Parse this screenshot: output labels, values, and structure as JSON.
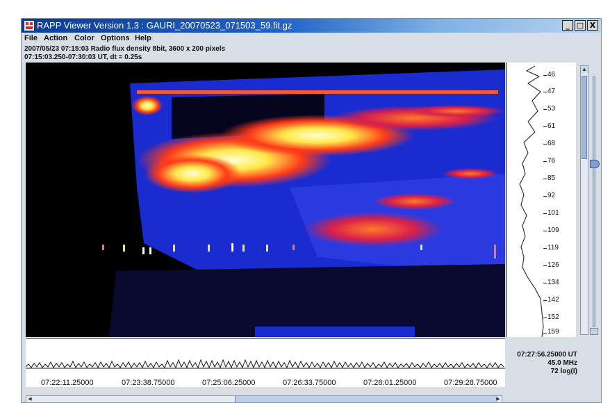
{
  "window": {
    "title": "RAPP Viewer Version 1.3 : GAURI_20070523_071503_59.fit.gz",
    "buttons": {
      "minimize": "_",
      "maximize": "□",
      "close": "X"
    }
  },
  "menu": {
    "items": [
      "File",
      "Action",
      "Color",
      "Options",
      "Help"
    ]
  },
  "info": {
    "line1": "2007/05/23  07:15:03 Radio flux density 8bit,  3600 x 200 pixels",
    "line2": "07:15:03.250-07:30:03 UT,  dt = 0.25s"
  },
  "frequency_axis": {
    "ticks": [
      "46",
      "47",
      "53",
      "61",
      "68",
      "76",
      "85",
      "92",
      "101",
      "109",
      "119",
      "126",
      "134",
      "142",
      "152",
      "159"
    ]
  },
  "readout": {
    "time": "07:27:56.25000 UT",
    "frequency": "45.0 MHz",
    "intensity": "72 log(I)"
  },
  "time_axis": {
    "labels": [
      "07:22:11.25000",
      "07:23:38.75000",
      "07:25:06.25000",
      "07:26:33.75000",
      "07:28:01.25000",
      "07:29:28.75000"
    ]
  },
  "colors": {
    "background": "#000000",
    "low": "#1a2bd0",
    "mid": "#ff3a1a",
    "high": "#ffe84a",
    "peak": "#ffffff"
  }
}
